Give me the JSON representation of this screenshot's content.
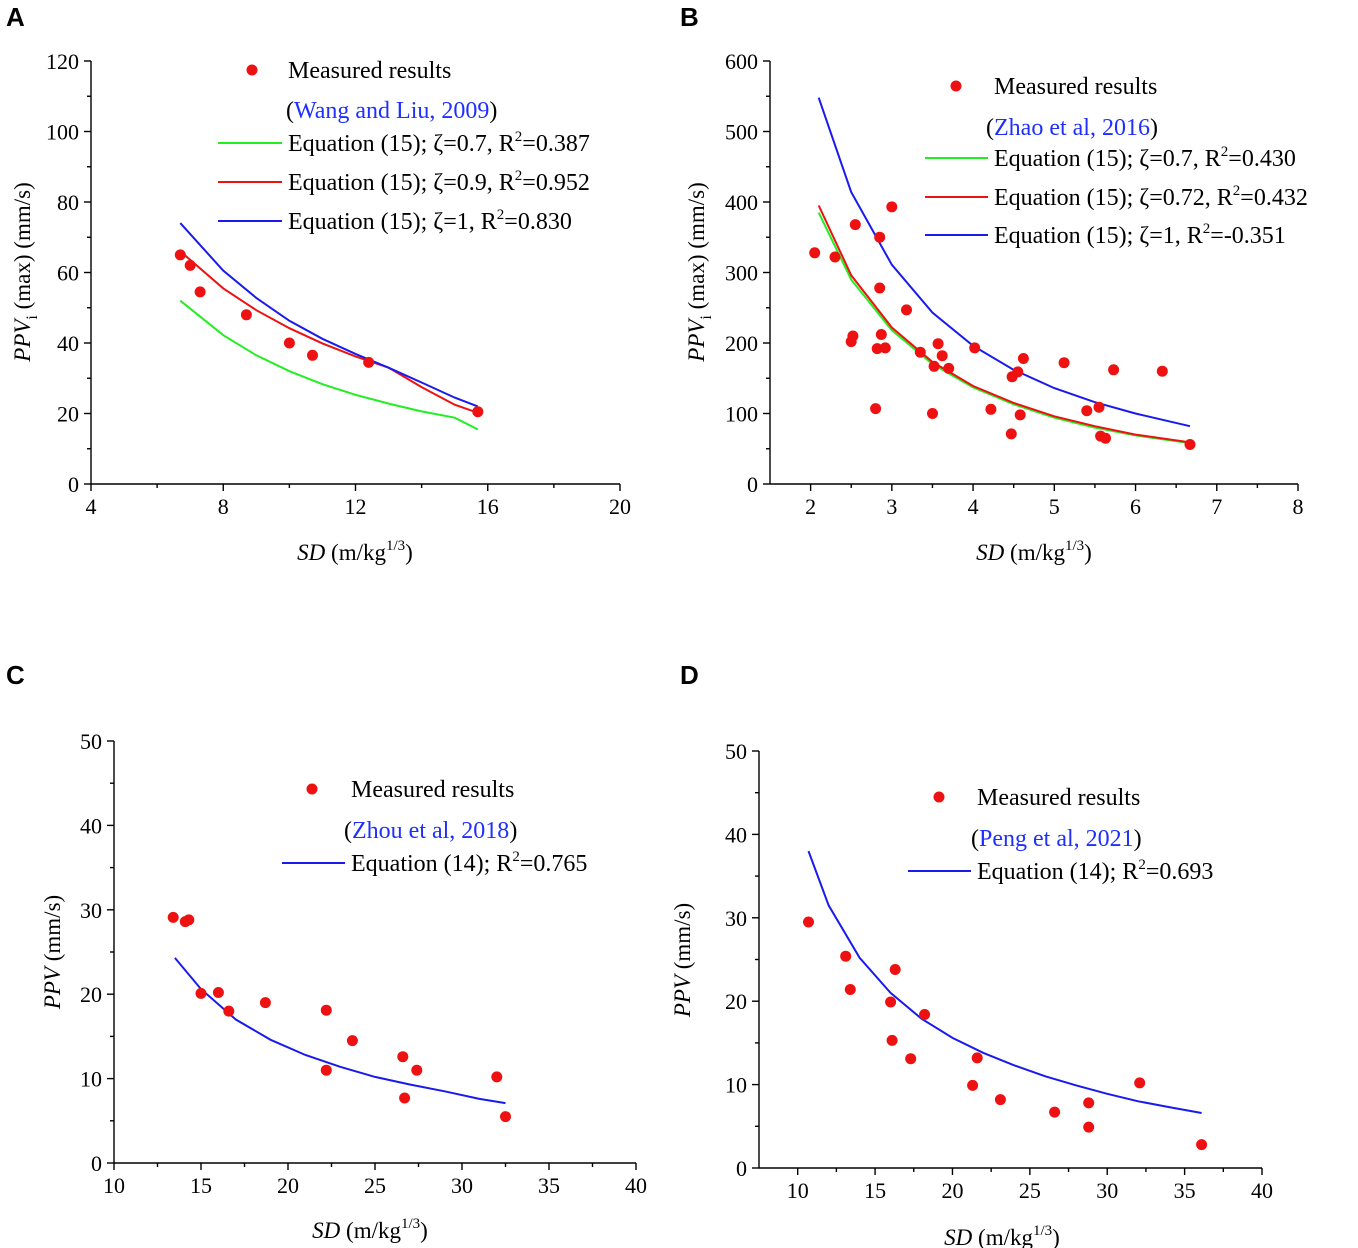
{
  "chart_data": [
    {
      "type": "scatter",
      "panel": "A",
      "ylabel": "PPV",
      "ylabel_sub": "i",
      "ylabel_rest": " (max) (mm/s)",
      "xlabel": "SD",
      "xlabel_rest": " (m/kg",
      "xlabel_sup": "1/3",
      "xlabel_end": ")",
      "xlim": [
        4,
        20
      ],
      "ylim": [
        0,
        120
      ],
      "xticks": [
        4,
        8,
        12,
        16,
        20
      ],
      "yticks": [
        0,
        20,
        40,
        60,
        80,
        100,
        120
      ],
      "points": {
        "name": "Measured results",
        "ref": "Wang and Liu, 2009",
        "color": "#ee1111",
        "x": [
          6.7,
          7.0,
          7.3,
          8.7,
          10.0,
          10.7,
          12.4,
          15.7
        ],
        "y": [
          65,
          62,
          54.5,
          48,
          40,
          36.5,
          34.5,
          20.5
        ]
      },
      "series": [
        {
          "label": "Equation (15); ζ=0.7, R",
          "r2": "=0.387",
          "color": "#22ee22",
          "x": [
            6.7,
            8,
            9,
            10,
            11,
            12,
            13,
            14,
            15,
            15.7
          ],
          "y": [
            52,
            42.2,
            36.5,
            32.0,
            28.3,
            25.3,
            22.8,
            20.6,
            18.8,
            15.5
          ]
        },
        {
          "label": "Equation (15); ζ=0.9, R",
          "r2": "=0.952",
          "color": "#ee1111",
          "x": [
            6.7,
            8,
            9,
            10,
            11,
            12,
            13,
            14,
            15,
            15.7
          ],
          "y": [
            66,
            55.5,
            49.3,
            44.2,
            39.9,
            36.2,
            33.0,
            27.5,
            22.5,
            20.2
          ]
        },
        {
          "label": "Equation (15); ζ=1, R",
          "r2": "=0.830",
          "color": "#1a1aee",
          "x": [
            6.7,
            8,
            9,
            10,
            11,
            12,
            13,
            14,
            15,
            15.7
          ],
          "y": [
            74,
            60.5,
            52.8,
            46.3,
            41.2,
            36.9,
            33.0,
            28.8,
            24.5,
            22
          ]
        }
      ]
    },
    {
      "type": "scatter",
      "panel": "B",
      "ylabel": "PPV",
      "ylabel_sub": "i",
      "ylabel_rest": " (max) (mm/s)",
      "xlabel": "SD",
      "xlabel_rest": " (m/kg",
      "xlabel_sup": "1/3",
      "xlabel_end": ")",
      "xlim": [
        1.5,
        8
      ],
      "ylim": [
        0,
        600
      ],
      "xticks": [
        2,
        3,
        4,
        5,
        6,
        7,
        8
      ],
      "yticks": [
        0,
        100,
        200,
        300,
        400,
        500,
        600
      ],
      "points": {
        "name": "Measured results",
        "ref": "Zhao et al, 2016",
        "color": "#ee1111",
        "x": [
          2.05,
          2.3,
          2.5,
          2.52,
          2.55,
          2.8,
          2.82,
          2.85,
          2.85,
          2.87,
          2.92,
          3.0,
          3.18,
          3.35,
          3.5,
          3.52,
          3.57,
          3.62,
          3.7,
          4.02,
          4.22,
          4.47,
          4.48,
          4.55,
          4.58,
          4.62,
          5.12,
          5.4,
          5.55,
          5.57,
          5.63,
          5.73,
          6.33,
          6.67
        ],
        "y": [
          328,
          322,
          202,
          210,
          368,
          107,
          192,
          350,
          278,
          212,
          193,
          393,
          247,
          187,
          100,
          167,
          199,
          182,
          164,
          193,
          106,
          71,
          152,
          159,
          98,
          178,
          172,
          104,
          109,
          68,
          65,
          162,
          160,
          56
        ]
      },
      "series": [
        {
          "label": "Equation (15); ζ=0.7, R",
          "r2": "=0.430",
          "color": "#22ee22",
          "x": [
            2.1,
            2.5,
            3,
            3.5,
            4,
            4.5,
            5,
            5.5,
            6,
            6.67
          ],
          "y": [
            385,
            290,
            218,
            170,
            137,
            113,
            94,
            80,
            69,
            58
          ]
        },
        {
          "label": "Equation (15); ζ=0.72, R",
          "r2": "=0.432",
          "color": "#ee1111",
          "x": [
            2.1,
            2.5,
            3,
            3.5,
            4,
            4.5,
            5,
            5.5,
            6,
            6.67
          ],
          "y": [
            395,
            296,
            222,
            173,
            139,
            115,
            96,
            82,
            70,
            59
          ]
        },
        {
          "label": "Equation (15); ζ=1, R",
          "r2": "=-0.351",
          "color": "#1a1aee",
          "x": [
            2.1,
            2.5,
            3,
            3.5,
            4,
            4.5,
            5,
            5.5,
            6,
            6.67
          ],
          "y": [
            548,
            414,
            311,
            243,
            196,
            162,
            136,
            116,
            100,
            82
          ]
        }
      ]
    },
    {
      "type": "scatter",
      "panel": "C",
      "ylabel": "PPV",
      "ylabel_sub": "",
      "ylabel_rest": " (mm/s)",
      "xlabel": "SD",
      "xlabel_rest": " (m/kg",
      "xlabel_sup": "1/3",
      "xlabel_end": ")",
      "xlim": [
        10,
        40
      ],
      "ylim": [
        0,
        50
      ],
      "xticks": [
        10,
        15,
        20,
        25,
        30,
        35,
        40
      ],
      "yticks": [
        0,
        10,
        20,
        30,
        40,
        50
      ],
      "points": {
        "name": "Measured results",
        "ref": "Zhou et al, 2018",
        "color": "#ee1111",
        "x": [
          13.4,
          14.1,
          14.3,
          15.0,
          16.0,
          16.6,
          18.7,
          22.2,
          22.2,
          23.7,
          26.6,
          26.7,
          27.4,
          32.0,
          32.5
        ],
        "y": [
          29.1,
          28.6,
          28.8,
          20.1,
          20.2,
          18.0,
          19.0,
          18.1,
          11.0,
          14.5,
          12.6,
          7.7,
          11.0,
          10.2,
          5.5
        ]
      },
      "series": [
        {
          "label": "Equation (14); R",
          "r2": "=0.765",
          "color": "#1a1aee",
          "x": [
            13.5,
            15,
            17,
            19,
            21,
            23,
            25,
            27,
            29,
            31,
            32.5
          ],
          "y": [
            24.3,
            20.6,
            17.0,
            14.6,
            12.8,
            11.4,
            10.2,
            9.3,
            8.5,
            7.6,
            7.1
          ]
        }
      ]
    },
    {
      "type": "scatter",
      "panel": "D",
      "ylabel": "PPV",
      "ylabel_sub": "",
      "ylabel_rest": " (mm/s)",
      "xlabel": "SD",
      "xlabel_rest": " (m/kg",
      "xlabel_sup": "1/3",
      "xlabel_end": ")",
      "xlim": [
        7.5,
        40
      ],
      "ylim": [
        0,
        50
      ],
      "xticks": [
        10,
        15,
        20,
        25,
        30,
        35,
        40
      ],
      "yticks": [
        0,
        10,
        20,
        30,
        40,
        50
      ],
      "points": {
        "name": "Measured results",
        "ref": "Peng et al, 2021",
        "color": "#ee1111",
        "x": [
          10.7,
          13.1,
          13.4,
          16.0,
          16.1,
          16.3,
          17.3,
          18.2,
          21.3,
          21.6,
          23.1,
          26.6,
          28.8,
          28.8,
          32.1,
          36.1
        ],
        "y": [
          29.5,
          25.4,
          21.4,
          19.9,
          15.3,
          23.8,
          13.1,
          18.4,
          9.9,
          13.2,
          8.2,
          6.7,
          7.8,
          4.9,
          10.2,
          2.8
        ]
      },
      "series": [
        {
          "label": "Equation (14); R",
          "r2": "=0.693",
          "color": "#1a1aee",
          "x": [
            10.7,
            12,
            14,
            16,
            18,
            20,
            22,
            24,
            26,
            28,
            30,
            32,
            34,
            36.1
          ],
          "y": [
            38,
            31.5,
            25.2,
            21.0,
            17.9,
            15.6,
            13.8,
            12.3,
            11.0,
            9.9,
            8.9,
            8.0,
            7.3,
            6.6
          ]
        }
      ]
    }
  ]
}
